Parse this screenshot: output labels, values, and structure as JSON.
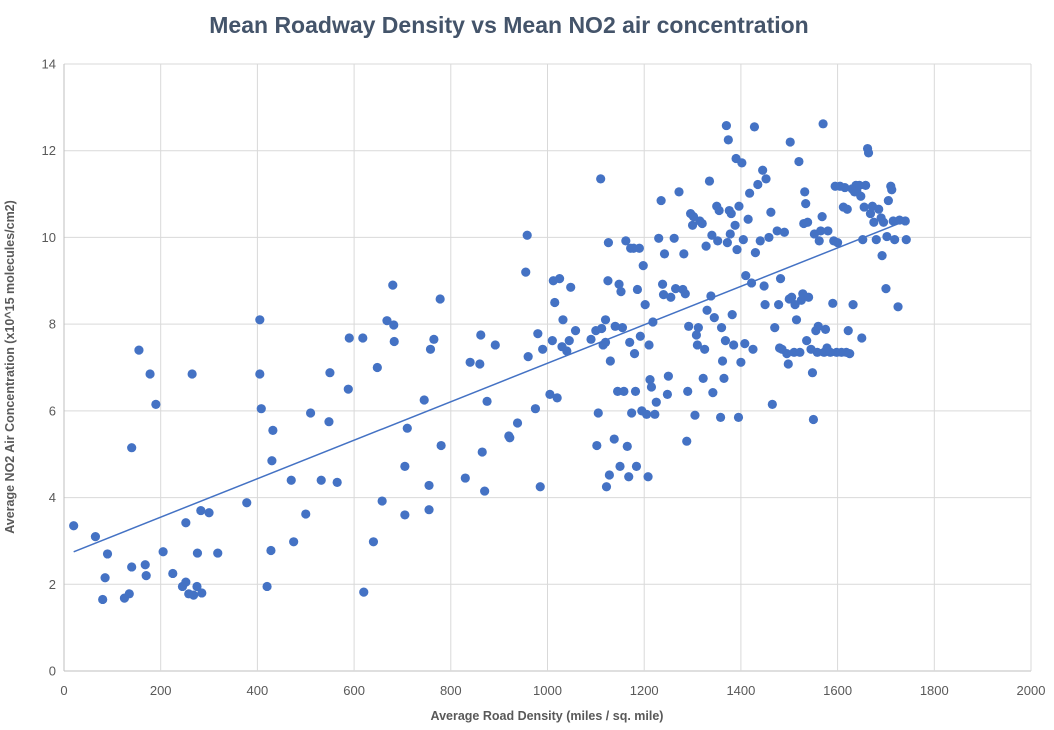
{
  "chart_data": {
    "type": "scatter",
    "title": "Mean Roadway Density vs Mean NO2 air concentration",
    "xlabel": "Average Road Density (miles / sq. mile)",
    "ylabel": "Average NO2 Air Concentration (x10^15 molecules/cm2)",
    "xlim": [
      0,
      2000
    ],
    "ylim": [
      0,
      14
    ],
    "xticks": [
      0,
      200,
      400,
      600,
      800,
      1000,
      1200,
      1400,
      1600,
      1800,
      2000
    ],
    "yticks": [
      0,
      2,
      4,
      6,
      8,
      10,
      12,
      14
    ],
    "grid": true,
    "legend": "none",
    "marker_color": "#4472c4",
    "trendline": {
      "type": "linear",
      "x": [
        20,
        1740
      ],
      "y": [
        2.75,
        10.38
      ]
    },
    "points": [
      [
        20,
        3.35
      ],
      [
        65,
        3.1
      ],
      [
        80,
        1.65
      ],
      [
        85,
        2.15
      ],
      [
        90,
        2.7
      ],
      [
        125,
        1.68
      ],
      [
        135,
        1.78
      ],
      [
        140,
        2.4
      ],
      [
        140,
        5.15
      ],
      [
        155,
        7.4
      ],
      [
        168,
        2.45
      ],
      [
        170,
        2.2
      ],
      [
        178,
        6.85
      ],
      [
        190,
        6.15
      ],
      [
        205,
        2.75
      ],
      [
        225,
        2.25
      ],
      [
        245,
        1.95
      ],
      [
        252,
        2.05
      ],
      [
        252,
        3.42
      ],
      [
        258,
        1.78
      ],
      [
        265,
        6.85
      ],
      [
        268,
        1.75
      ],
      [
        275,
        1.95
      ],
      [
        276,
        2.72
      ],
      [
        283,
        3.7
      ],
      [
        285,
        1.8
      ],
      [
        300,
        3.65
      ],
      [
        318,
        2.72
      ],
      [
        378,
        3.88
      ],
      [
        405,
        8.1
      ],
      [
        405,
        6.85
      ],
      [
        408,
        6.05
      ],
      [
        420,
        1.95
      ],
      [
        428,
        2.78
      ],
      [
        430,
        4.85
      ],
      [
        432,
        5.55
      ],
      [
        470,
        4.4
      ],
      [
        475,
        2.98
      ],
      [
        500,
        3.62
      ],
      [
        510,
        5.95
      ],
      [
        532,
        4.4
      ],
      [
        548,
        5.75
      ],
      [
        550,
        6.88
      ],
      [
        565,
        4.35
      ],
      [
        588,
        6.5
      ],
      [
        590,
        7.68
      ],
      [
        618,
        7.68
      ],
      [
        620,
        1.82
      ],
      [
        640,
        2.98
      ],
      [
        648,
        7.0
      ],
      [
        658,
        3.92
      ],
      [
        668,
        8.08
      ],
      [
        680,
        8.9
      ],
      [
        682,
        7.98
      ],
      [
        683,
        7.6
      ],
      [
        705,
        3.6
      ],
      [
        705,
        4.72
      ],
      [
        710,
        5.6
      ],
      [
        745,
        6.25
      ],
      [
        755,
        3.72
      ],
      [
        755,
        4.28
      ],
      [
        758,
        7.42
      ],
      [
        765,
        7.65
      ],
      [
        778,
        8.58
      ],
      [
        780,
        5.2
      ],
      [
        830,
        4.45
      ],
      [
        840,
        7.12
      ],
      [
        860,
        7.08
      ],
      [
        862,
        7.75
      ],
      [
        865,
        5.05
      ],
      [
        870,
        4.15
      ],
      [
        875,
        6.22
      ],
      [
        892,
        7.52
      ],
      [
        920,
        5.42
      ],
      [
        922,
        5.38
      ],
      [
        938,
        5.72
      ],
      [
        955,
        9.2
      ],
      [
        958,
        10.05
      ],
      [
        960,
        7.25
      ],
      [
        975,
        6.05
      ],
      [
        980,
        7.78
      ],
      [
        985,
        4.25
      ],
      [
        990,
        7.42
      ],
      [
        1005,
        6.38
      ],
      [
        1010,
        7.62
      ],
      [
        1012,
        9.0
      ],
      [
        1015,
        8.5
      ],
      [
        1020,
        6.3
      ],
      [
        1025,
        9.05
      ],
      [
        1030,
        7.48
      ],
      [
        1032,
        8.1
      ],
      [
        1040,
        7.38
      ],
      [
        1045,
        7.62
      ],
      [
        1048,
        8.85
      ],
      [
        1058,
        7.85
      ],
      [
        1090,
        7.65
      ],
      [
        1100,
        7.85
      ],
      [
        1102,
        5.2
      ],
      [
        1105,
        5.95
      ],
      [
        1110,
        11.35
      ],
      [
        1112,
        7.9
      ],
      [
        1115,
        7.52
      ],
      [
        1120,
        8.1
      ],
      [
        1120,
        7.58
      ],
      [
        1122,
        4.25
      ],
      [
        1125,
        9.0
      ],
      [
        1126,
        9.88
      ],
      [
        1128,
        4.52
      ],
      [
        1130,
        7.15
      ],
      [
        1138,
        5.35
      ],
      [
        1140,
        7.95
      ],
      [
        1145,
        6.45
      ],
      [
        1148,
        8.92
      ],
      [
        1150,
        4.72
      ],
      [
        1152,
        8.75
      ],
      [
        1155,
        7.92
      ],
      [
        1158,
        6.45
      ],
      [
        1162,
        9.92
      ],
      [
        1165,
        5.18
      ],
      [
        1168,
        4.48
      ],
      [
        1170,
        7.58
      ],
      [
        1172,
        9.75
      ],
      [
        1174,
        5.95
      ],
      [
        1178,
        9.75
      ],
      [
        1180,
        7.32
      ],
      [
        1182,
        6.45
      ],
      [
        1184,
        4.72
      ],
      [
        1186,
        8.8
      ],
      [
        1190,
        9.75
      ],
      [
        1192,
        7.72
      ],
      [
        1195,
        6.0
      ],
      [
        1198,
        9.35
      ],
      [
        1202,
        8.45
      ],
      [
        1205,
        5.92
      ],
      [
        1208,
        4.48
      ],
      [
        1210,
        7.52
      ],
      [
        1212,
        6.72
      ],
      [
        1215,
        6.55
      ],
      [
        1218,
        8.05
      ],
      [
        1222,
        5.92
      ],
      [
        1225,
        6.2
      ],
      [
        1230,
        9.98
      ],
      [
        1235,
        10.85
      ],
      [
        1238,
        8.92
      ],
      [
        1240,
        8.68
      ],
      [
        1242,
        9.62
      ],
      [
        1248,
        6.38
      ],
      [
        1250,
        6.8
      ],
      [
        1255,
        8.62
      ],
      [
        1262,
        9.98
      ],
      [
        1265,
        8.82
      ],
      [
        1272,
        11.05
      ],
      [
        1280,
        8.8
      ],
      [
        1282,
        9.62
      ],
      [
        1285,
        8.7
      ],
      [
        1288,
        5.3
      ],
      [
        1290,
        6.45
      ],
      [
        1292,
        7.95
      ],
      [
        1296,
        10.55
      ],
      [
        1300,
        10.28
      ],
      [
        1302,
        10.48
      ],
      [
        1305,
        5.9
      ],
      [
        1308,
        7.75
      ],
      [
        1310,
        7.52
      ],
      [
        1312,
        7.92
      ],
      [
        1315,
        10.38
      ],
      [
        1320,
        10.32
      ],
      [
        1322,
        6.75
      ],
      [
        1325,
        7.42
      ],
      [
        1328,
        9.8
      ],
      [
        1330,
        8.32
      ],
      [
        1335,
        11.3
      ],
      [
        1338,
        8.65
      ],
      [
        1340,
        10.05
      ],
      [
        1342,
        6.42
      ],
      [
        1345,
        8.15
      ],
      [
        1350,
        10.72
      ],
      [
        1352,
        9.92
      ],
      [
        1355,
        10.62
      ],
      [
        1358,
        5.85
      ],
      [
        1360,
        7.92
      ],
      [
        1362,
        7.15
      ],
      [
        1365,
        6.75
      ],
      [
        1368,
        7.62
      ],
      [
        1370,
        12.58
      ],
      [
        1372,
        9.88
      ],
      [
        1374,
        12.25
      ],
      [
        1376,
        10.62
      ],
      [
        1378,
        10.08
      ],
      [
        1380,
        10.55
      ],
      [
        1382,
        8.22
      ],
      [
        1385,
        7.52
      ],
      [
        1388,
        10.28
      ],
      [
        1390,
        11.82
      ],
      [
        1392,
        9.72
      ],
      [
        1395,
        5.85
      ],
      [
        1396,
        10.72
      ],
      [
        1400,
        7.12
      ],
      [
        1402,
        11.72
      ],
      [
        1405,
        9.95
      ],
      [
        1408,
        7.55
      ],
      [
        1410,
        9.12
      ],
      [
        1415,
        10.42
      ],
      [
        1418,
        11.02
      ],
      [
        1422,
        8.95
      ],
      [
        1425,
        7.42
      ],
      [
        1428,
        12.55
      ],
      [
        1430,
        9.65
      ],
      [
        1435,
        11.22
      ],
      [
        1440,
        9.92
      ],
      [
        1445,
        11.55
      ],
      [
        1448,
        8.88
      ],
      [
        1450,
        8.45
      ],
      [
        1452,
        11.35
      ],
      [
        1458,
        10.0
      ],
      [
        1462,
        10.58
      ],
      [
        1465,
        6.15
      ],
      [
        1470,
        7.92
      ],
      [
        1475,
        10.15
      ],
      [
        1478,
        8.45
      ],
      [
        1480,
        7.45
      ],
      [
        1482,
        9.05
      ],
      [
        1485,
        7.42
      ],
      [
        1490,
        10.12
      ],
      [
        1495,
        7.32
      ],
      [
        1498,
        7.08
      ],
      [
        1500,
        8.58
      ],
      [
        1502,
        12.2
      ],
      [
        1505,
        8.62
      ],
      [
        1510,
        7.35
      ],
      [
        1512,
        8.45
      ],
      [
        1515,
        8.1
      ],
      [
        1520,
        11.75
      ],
      [
        1522,
        7.35
      ],
      [
        1525,
        8.55
      ],
      [
        1528,
        8.7
      ],
      [
        1530,
        10.32
      ],
      [
        1532,
        11.05
      ],
      [
        1534,
        10.78
      ],
      [
        1536,
        7.62
      ],
      [
        1538,
        10.35
      ],
      [
        1540,
        8.62
      ],
      [
        1545,
        7.42
      ],
      [
        1548,
        6.88
      ],
      [
        1550,
        5.8
      ],
      [
        1552,
        10.08
      ],
      [
        1555,
        7.85
      ],
      [
        1558,
        7.35
      ],
      [
        1560,
        7.95
      ],
      [
        1562,
        9.92
      ],
      [
        1565,
        10.15
      ],
      [
        1568,
        10.48
      ],
      [
        1570,
        12.62
      ],
      [
        1572,
        7.35
      ],
      [
        1575,
        7.88
      ],
      [
        1578,
        7.45
      ],
      [
        1580,
        10.15
      ],
      [
        1585,
        7.35
      ],
      [
        1590,
        8.48
      ],
      [
        1592,
        9.92
      ],
      [
        1595,
        11.18
      ],
      [
        1598,
        7.35
      ],
      [
        1600,
        9.88
      ],
      [
        1605,
        11.18
      ],
      [
        1608,
        7.35
      ],
      [
        1612,
        10.7
      ],
      [
        1615,
        11.15
      ],
      [
        1618,
        7.35
      ],
      [
        1620,
        10.65
      ],
      [
        1622,
        7.85
      ],
      [
        1625,
        7.32
      ],
      [
        1630,
        11.12
      ],
      [
        1632,
        8.45
      ],
      [
        1635,
        11.05
      ],
      [
        1638,
        11.2
      ],
      [
        1640,
        11.05
      ],
      [
        1645,
        11.2
      ],
      [
        1648,
        10.95
      ],
      [
        1650,
        7.68
      ],
      [
        1652,
        9.95
      ],
      [
        1655,
        10.7
      ],
      [
        1658,
        11.2
      ],
      [
        1662,
        12.05
      ],
      [
        1664,
        11.95
      ],
      [
        1668,
        10.55
      ],
      [
        1672,
        10.72
      ],
      [
        1675,
        10.35
      ],
      [
        1680,
        9.95
      ],
      [
        1685,
        10.65
      ],
      [
        1690,
        10.45
      ],
      [
        1692,
        9.58
      ],
      [
        1695,
        10.35
      ],
      [
        1700,
        8.82
      ],
      [
        1702,
        10.02
      ],
      [
        1705,
        10.85
      ],
      [
        1710,
        11.18
      ],
      [
        1712,
        11.1
      ],
      [
        1715,
        10.38
      ],
      [
        1718,
        9.95
      ],
      [
        1725,
        8.4
      ],
      [
        1728,
        10.4
      ],
      [
        1740,
        10.38
      ],
      [
        1742,
        9.95
      ]
    ]
  }
}
